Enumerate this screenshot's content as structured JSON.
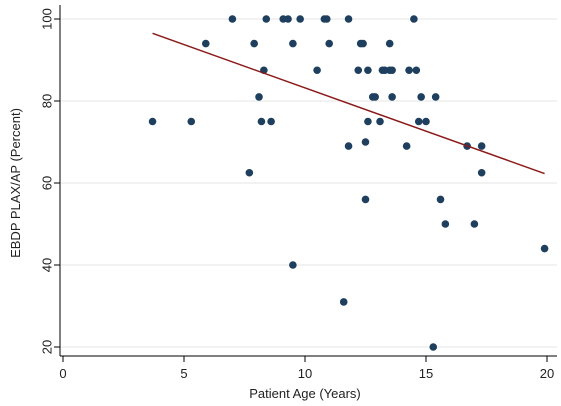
{
  "chart_data": {
    "type": "scatter",
    "xlabel": "Patient Age (Years)",
    "ylabel": "EBDP PLAX/AP (Percent)",
    "xlim": [
      0,
      20
    ],
    "ylim": [
      20,
      100
    ],
    "xticks": [
      0,
      5,
      10,
      15,
      20
    ],
    "yticks": [
      20,
      40,
      60,
      80,
      100
    ],
    "grid": "horizontal",
    "colors": {
      "points": "#1f3f5f",
      "fit_line": "#8b1a1a",
      "grid": "#e6e6e6"
    },
    "series": [
      {
        "marker": "circle",
        "x": [
          3.7,
          5.3,
          5.9,
          7.0,
          7.7,
          7.9,
          8.1,
          8.2,
          8.3,
          8.4,
          8.6,
          9.1,
          9.3,
          9.5,
          9.5,
          9.8,
          10.5,
          10.8,
          10.9,
          11.0,
          11.6,
          11.8,
          11.8,
          12.2,
          12.3,
          12.4,
          12.5,
          12.5,
          12.6,
          12.6,
          12.8,
          12.9,
          13.1,
          13.2,
          13.3,
          13.5,
          13.5,
          13.6,
          13.6,
          14.2,
          14.3,
          14.5,
          14.6,
          14.7,
          14.8,
          15.0,
          15.3,
          15.4,
          15.6,
          15.8,
          16.7,
          17.0,
          17.3,
          17.3,
          19.9
        ],
        "y": [
          75,
          75,
          94,
          100,
          62.5,
          94,
          81,
          75,
          87.5,
          100,
          75,
          100,
          100,
          94,
          40,
          100,
          87.5,
          100,
          100,
          94,
          31,
          69,
          100,
          87.5,
          94,
          94,
          70,
          56,
          87.5,
          75,
          81,
          81,
          75,
          87.5,
          87.5,
          87.5,
          94,
          81,
          87.5,
          69,
          87.5,
          100,
          87.5,
          75,
          81,
          75,
          20,
          81,
          56,
          50,
          69,
          50,
          69,
          62.5,
          44
        ]
      }
    ],
    "fit_line": {
      "x": [
        3.7,
        19.9
      ],
      "y": [
        96.5,
        62.3
      ]
    }
  }
}
